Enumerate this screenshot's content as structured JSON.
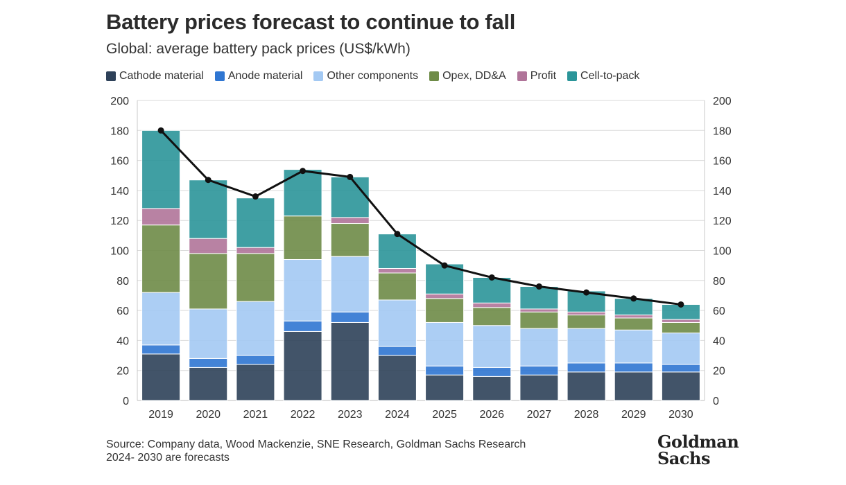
{
  "header": {
    "title": "Battery prices forecast to continue to fall",
    "subtitle": "Global: average battery pack prices (US$/kWh)"
  },
  "footer": {
    "source": "Source: Company data, Wood Mackenzie, SNE Research, Goldman Sachs Research",
    "note": "2024- 2030 are forecasts"
  },
  "logo": {
    "line1": "Goldman",
    "line2": "Sachs"
  },
  "chart_data": {
    "type": "bar",
    "stacked": true,
    "categories": [
      "2019",
      "2020",
      "2021",
      "2022",
      "2023",
      "2024",
      "2025",
      "2026",
      "2027",
      "2028",
      "2029",
      "2030"
    ],
    "ylim": [
      0,
      200
    ],
    "yticks": [
      0,
      20,
      40,
      60,
      80,
      100,
      120,
      140,
      160,
      180,
      200
    ],
    "secondary_y_axis": true,
    "grid": true,
    "legend_position": "top-left",
    "series": [
      {
        "name": "Cathode material",
        "color": "#2e4159",
        "values": [
          31,
          22,
          24,
          46,
          52,
          30,
          17,
          16,
          17,
          19,
          19,
          19
        ]
      },
      {
        "name": "Anode material",
        "color": "#2f76d2",
        "values": [
          6,
          6,
          6,
          7,
          7,
          6,
          6,
          6,
          6,
          6,
          6,
          5
        ]
      },
      {
        "name": "Other components",
        "color": "#a3c9f3",
        "values": [
          35,
          33,
          36,
          41,
          37,
          31,
          29,
          28,
          25,
          23,
          22,
          21
        ]
      },
      {
        "name": "Opex, DD&A",
        "color": "#6e8b47",
        "values": [
          45,
          37,
          32,
          29,
          22,
          18,
          16,
          12,
          11,
          9,
          8,
          7
        ]
      },
      {
        "name": "Profit",
        "color": "#b07499",
        "values": [
          11,
          10,
          4,
          0,
          4,
          3,
          3,
          3,
          2,
          2,
          2,
          2
        ]
      },
      {
        "name": "Cell-to-pack",
        "color": "#2b9599",
        "values": [
          52,
          39,
          33,
          31,
          27,
          23,
          20,
          17,
          15,
          14,
          11,
          10
        ]
      }
    ],
    "line": {
      "color": "#111111",
      "values": [
        180,
        147,
        136,
        153,
        149,
        111,
        90,
        82,
        76,
        72,
        68,
        64
      ]
    }
  }
}
